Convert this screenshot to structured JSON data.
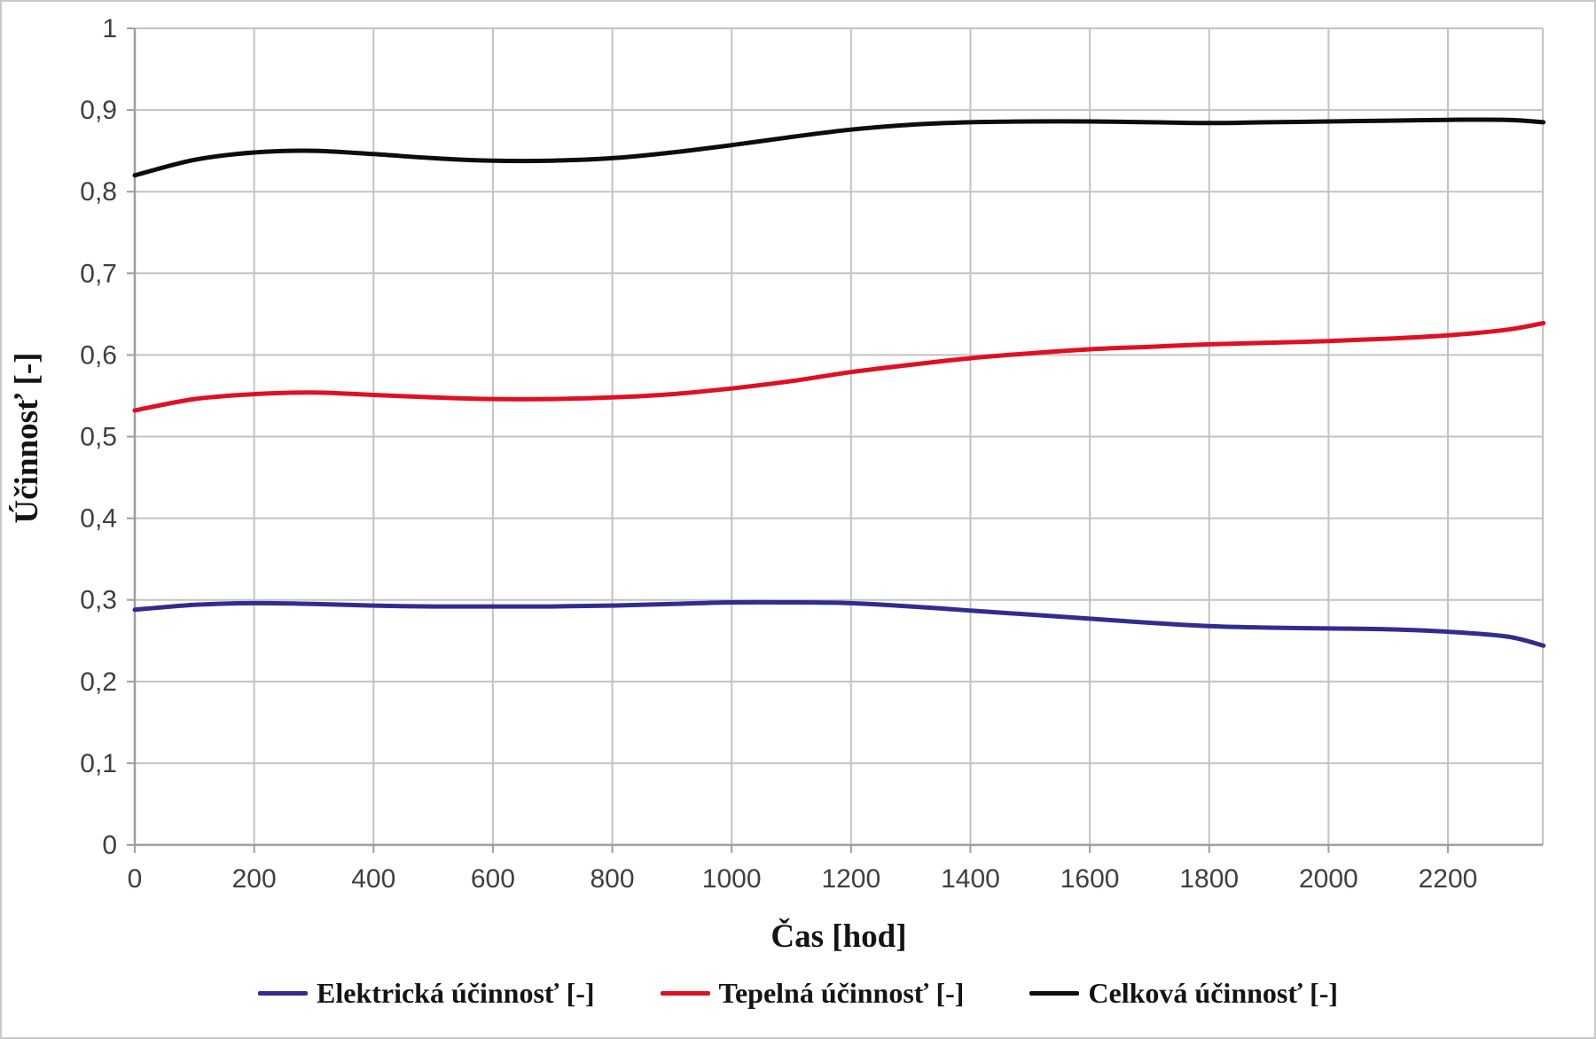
{
  "chart_data": {
    "type": "line",
    "title": "",
    "xlabel": "Čas [hod]",
    "ylabel": "Účinnosť [-]",
    "xlim": [
      0,
      2360
    ],
    "ylim": [
      0,
      1
    ],
    "grid": true,
    "legend_position": "bottom",
    "decimal_separator": ",",
    "x_ticks": [
      0,
      200,
      400,
      600,
      800,
      1000,
      1200,
      1400,
      1600,
      1800,
      2000,
      2200
    ],
    "y_ticks": [
      0,
      0.1,
      0.2,
      0.3,
      0.4,
      0.5,
      0.6,
      0.7,
      0.8,
      0.9,
      1
    ],
    "y_tick_labels": [
      "0",
      "0,1",
      "0,2",
      "0,3",
      "0,4",
      "0,5",
      "0,6",
      "0,7",
      "0,8",
      "0,9",
      "1"
    ],
    "x": [
      0,
      100,
      200,
      300,
      400,
      500,
      600,
      700,
      800,
      900,
      1000,
      1100,
      1200,
      1300,
      1400,
      1500,
      1600,
      1700,
      1800,
      1900,
      2000,
      2100,
      2200,
      2300,
      2360
    ],
    "series": [
      {
        "name": "Elektrická účinnosť [-]",
        "color": "#332c8f",
        "values": [
          0.288,
          0.294,
          0.296,
          0.295,
          0.293,
          0.292,
          0.292,
          0.292,
          0.293,
          0.295,
          0.297,
          0.297,
          0.296,
          0.292,
          0.287,
          0.282,
          0.277,
          0.272,
          0.268,
          0.266,
          0.265,
          0.264,
          0.261,
          0.255,
          0.244
        ]
      },
      {
        "name": "Tepelná účinnosť [-]",
        "color": "#e01023",
        "values": [
          0.532,
          0.546,
          0.552,
          0.554,
          0.551,
          0.548,
          0.546,
          0.546,
          0.548,
          0.552,
          0.559,
          0.568,
          0.579,
          0.588,
          0.596,
          0.602,
          0.607,
          0.61,
          0.613,
          0.615,
          0.617,
          0.62,
          0.624,
          0.631,
          0.639
        ]
      },
      {
        "name": "Celková účinnosť [-]",
        "color": "#0d0d0d",
        "values": [
          0.82,
          0.839,
          0.848,
          0.85,
          0.846,
          0.841,
          0.838,
          0.838,
          0.841,
          0.848,
          0.857,
          0.867,
          0.876,
          0.882,
          0.885,
          0.886,
          0.886,
          0.885,
          0.884,
          0.885,
          0.886,
          0.887,
          0.888,
          0.888,
          0.885
        ]
      }
    ],
    "colors": {
      "background": "#ffffff",
      "grid": "#c3c3c3",
      "axis": "#9e9e9e",
      "tick_label": "#3f3f3f",
      "title_text": "#141414",
      "figure_border": "#c9c9c9"
    }
  }
}
